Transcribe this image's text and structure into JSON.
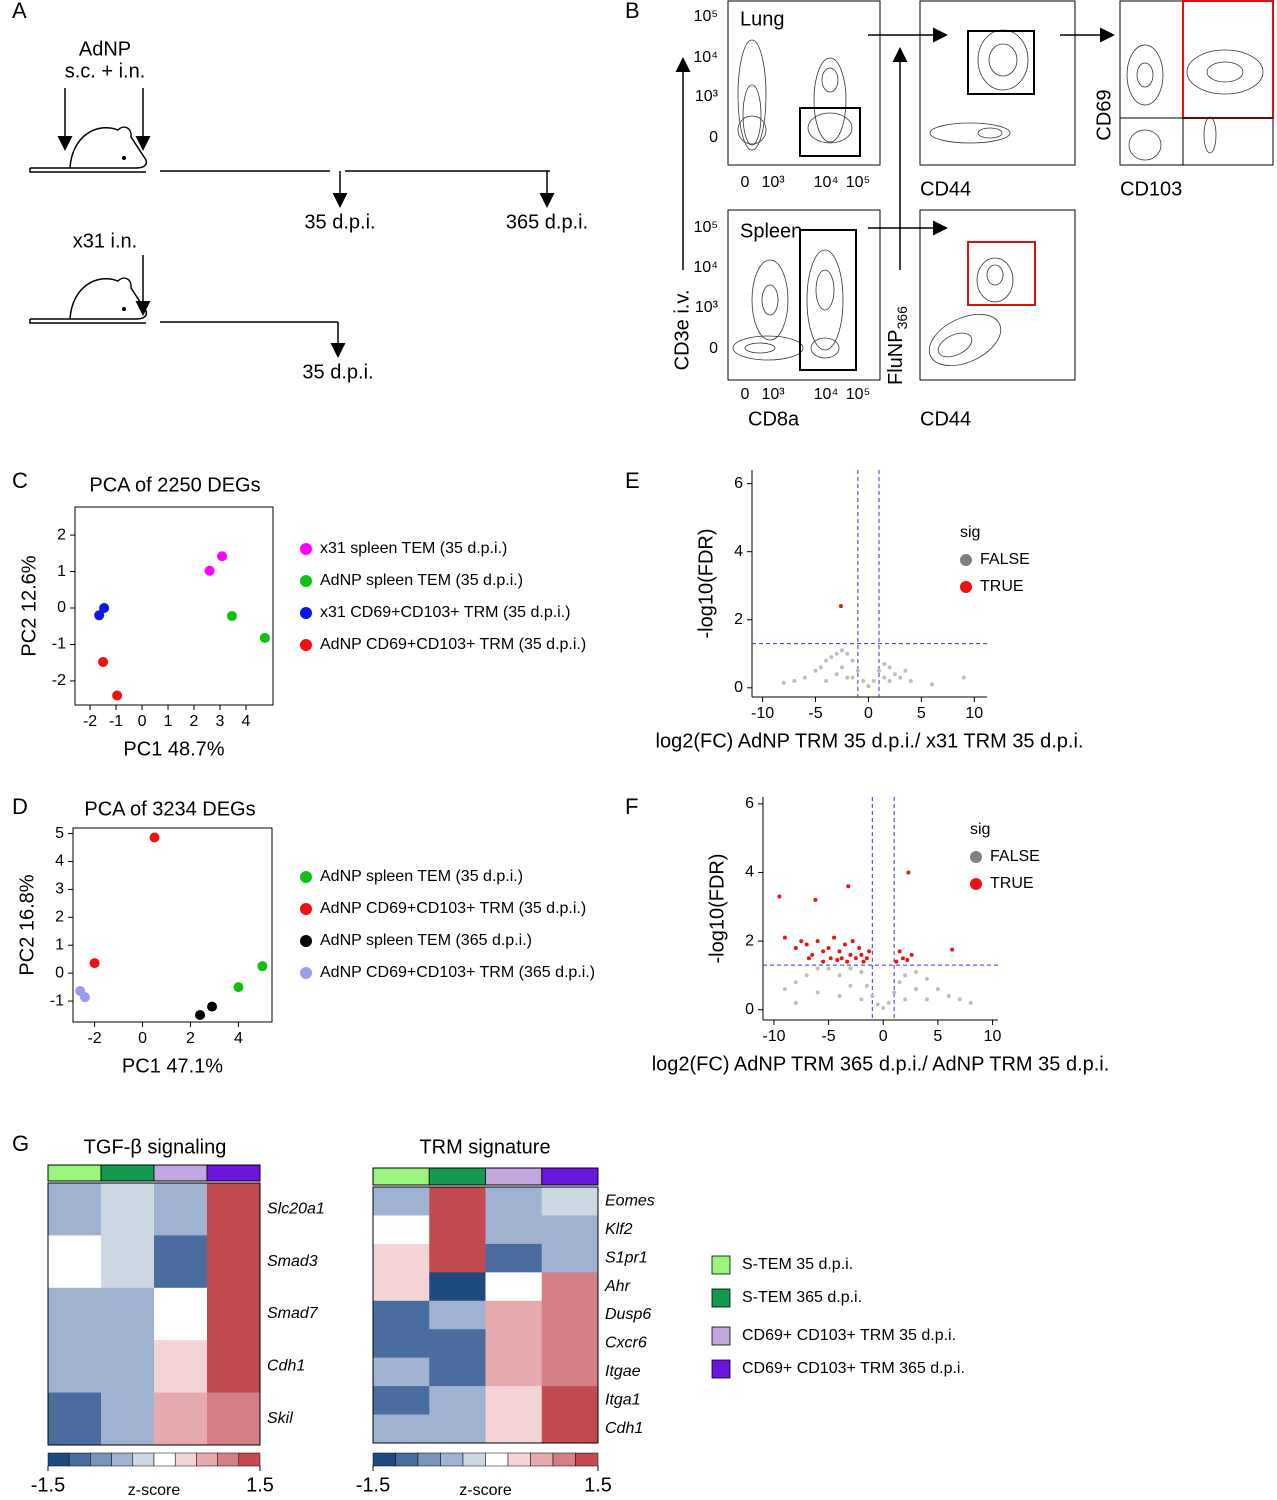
{
  "panel_labels": [
    "A",
    "B",
    "C",
    "D",
    "E",
    "F",
    "G"
  ],
  "schematic": {
    "adnp": "AdNP",
    "adnp_route": "s.c. + i.n.",
    "x31": "x31 i.n.",
    "timepoints": [
      "35 d.p.i.",
      "365 d.p.i.",
      "35 d.p.i."
    ]
  },
  "flow": {
    "lung": "Lung",
    "spleen": "Spleen",
    "cd3e": "CD3e i.v.",
    "cd8a": "CD8a",
    "cd44": "CD44",
    "cd69": "CD69",
    "cd103": "CD103",
    "flunp": "FluNP",
    "flunp_sub": "366",
    "tick_labels": [
      "0",
      "10³",
      "10⁴",
      "10⁵"
    ]
  },
  "chart_data": [
    {
      "type": "scatter",
      "frame": "box",
      "title": "PCA of 2250 DEGs",
      "xlabel": "PC1 48.7%",
      "ylabel": "PC2 12.6%",
      "xlim": [
        -2.58,
        5.04
      ],
      "ylim": [
        -2.66,
        2.77
      ],
      "xticks": [
        -2,
        -1,
        0,
        1,
        2,
        3,
        4
      ],
      "yticks": [
        -2,
        -1,
        0,
        1,
        2
      ],
      "marker_size": 5,
      "series": [
        {
          "name": "x31 spleen TEM (35 d.p.i.)",
          "color": "#ff00ff",
          "x": [
            2.6,
            3.08
          ],
          "values": [
            1.02,
            1.42
          ]
        },
        {
          "name": "AdNP spleen TEM (35 d.p.i.)",
          "color": "#10c010",
          "x": [
            3.46,
            4.73
          ],
          "values": [
            -0.22,
            -0.82
          ]
        },
        {
          "name": "x31 CD69+CD103+ TRM (35 d.p.i.)",
          "color": "#0a16e6",
          "x": [
            -1.65,
            -1.46
          ],
          "values": [
            -0.2,
            0.0
          ]
        },
        {
          "name": "AdNP CD69+CD103+ TRM (35 d.p.i.)",
          "color": "#ee1111",
          "x": [
            -1.5,
            -0.96
          ],
          "values": [
            -1.48,
            -2.4
          ]
        }
      ]
    },
    {
      "type": "scatter",
      "frame": "box",
      "title": "PCA of 3234 DEGs",
      "xlabel": "PC1 47.1%",
      "ylabel": "PC2 16.8%",
      "xlim": [
        -2.9,
        5.4
      ],
      "ylim": [
        -1.75,
        5.2
      ],
      "xticks": [
        -2,
        0,
        2,
        4
      ],
      "yticks": [
        -1,
        0,
        1,
        2,
        3,
        4,
        5
      ],
      "marker_size": 5,
      "series": [
        {
          "name": "AdNP spleen TEM (35 d.p.i.)",
          "color": "#10c010",
          "x": [
            4.0,
            5.0
          ],
          "values": [
            -0.5,
            0.25
          ]
        },
        {
          "name": "AdNP CD69+CD103+ TRM (35 d.p.i.)",
          "color": "#ee1111",
          "x": [
            0.5,
            -2.0
          ],
          "values": [
            4.86,
            0.36
          ]
        },
        {
          "name": "AdNP spleen TEM (365 d.p.i.)",
          "color": "#000000",
          "x": [
            2.4,
            2.9
          ],
          "values": [
            -1.5,
            -1.2
          ]
        },
        {
          "name": "AdNP CD69+CD103+ TRM (365 d.p.i.)",
          "color": "#9a9cf2",
          "x": [
            -2.6,
            -2.4
          ],
          "values": [
            -0.64,
            -0.86
          ]
        }
      ]
    },
    {
      "type": "scatter",
      "frame": "axes",
      "xlabel": "log2(FC) AdNP TRM 35 d.p.i./ x31 TRM 35 d.p.i.",
      "ylabel": "-log10(FDR)",
      "legend_title": "sig",
      "xlim": [
        -11,
        11.2
      ],
      "ylim": [
        -0.27,
        6.4
      ],
      "xticks": [
        -10,
        -5,
        0,
        5,
        10
      ],
      "yticks": [
        0,
        2,
        4,
        6
      ],
      "vlines": [
        -1,
        1
      ],
      "hline": 1.3,
      "marker_size": 2,
      "series": [
        {
          "name": "FALSE",
          "color": "#bdbdbd",
          "legend_color": "#7f7f7f",
          "x": [
            -6,
            -5,
            -4.5,
            -4,
            -3.5,
            -3,
            -2.5,
            -2,
            -1.5,
            -1,
            -0.5,
            0,
            0.5,
            1,
            1.5,
            2,
            2.5,
            3,
            4,
            -7,
            -3,
            -2,
            2,
            -1.5,
            1.5,
            -8,
            6,
            -4,
            3.5,
            -2.5,
            9
          ],
          "values": [
            0.3,
            0.5,
            0.6,
            0.8,
            0.9,
            1.0,
            1.1,
            1.0,
            0.8,
            0.5,
            0.2,
            0.05,
            0.2,
            0.5,
            0.7,
            0.6,
            0.4,
            0.3,
            0.2,
            0.2,
            0.4,
            0.3,
            0.2,
            0.3,
            0.3,
            0.15,
            0.1,
            0.2,
            0.5,
            0.6,
            0.3
          ]
        },
        {
          "name": "TRUE",
          "color": "#ee1111",
          "x": [
            -2.6
          ],
          "values": [
            2.4
          ]
        }
      ]
    },
    {
      "type": "scatter",
      "frame": "axes",
      "xlabel": "log2(FC) AdNP TRM 365 d.p.i./ AdNP TRM 35 d.p.i.",
      "ylabel": "-log10(FDR)",
      "legend_title": "sig",
      "xlim": [
        -11,
        10.5
      ],
      "ylim": [
        -0.3,
        6.2
      ],
      "xticks": [
        -10,
        -5,
        0,
        5,
        10
      ],
      "yticks": [
        0,
        2,
        4,
        6
      ],
      "vlines": [
        -1,
        1
      ],
      "hline": 1.3,
      "marker_size": 2,
      "series": [
        {
          "name": "FALSE",
          "color": "#bdbdbd",
          "legend_color": "#7f7f7f",
          "x": [
            -9,
            -8,
            -7,
            -6,
            -5,
            -4,
            -3,
            -2,
            -1.5,
            -1,
            -0.5,
            0,
            0.5,
            1,
            1.5,
            2,
            3,
            4,
            5,
            6,
            7,
            8,
            -6,
            -4,
            -2,
            2,
            4,
            -8,
            -3,
            3
          ],
          "values": [
            0.6,
            0.8,
            1.0,
            1.2,
            1.2,
            1.0,
            1.2,
            1.1,
            0.7,
            0.4,
            0.15,
            0.05,
            0.2,
            0.5,
            0.8,
            1.0,
            1.1,
            0.9,
            0.6,
            0.4,
            0.3,
            0.2,
            0.5,
            0.4,
            0.3,
            0.3,
            0.3,
            0.2,
            0.7,
            0.6
          ]
        },
        {
          "name": "TRUE",
          "color": "#ee1111",
          "x": [
            -9.5,
            -6.2,
            -3.2,
            2.3,
            6.3,
            -9,
            -8,
            -7,
            -6.5,
            -6,
            -5.5,
            -5,
            -4.8,
            -4.5,
            -4,
            -3.8,
            -3.5,
            -3,
            -2.8,
            -2.5,
            -2.2,
            -2,
            -1.8,
            -1.5,
            -5.5,
            -4.2,
            -3.3,
            1.5,
            1.8,
            2.2,
            2.6,
            1.2,
            -1.3,
            -6.8,
            -7.5
          ],
          "values": [
            3.3,
            3.2,
            3.6,
            4.0,
            1.75,
            2.1,
            1.8,
            1.9,
            1.6,
            2.0,
            1.7,
            1.8,
            1.5,
            2.1,
            1.7,
            1.5,
            1.9,
            1.6,
            2.0,
            1.5,
            1.8,
            1.6,
            1.4,
            1.5,
            1.4,
            1.45,
            1.4,
            1.7,
            1.5,
            1.45,
            1.6,
            1.4,
            1.7,
            1.5,
            2.0
          ]
        }
      ]
    },
    {
      "type": "heatmap",
      "title": "TGF-β signaling",
      "rows": [
        "Slc20a1",
        "Smad3",
        "Smad7",
        "Cdh1",
        "Skil"
      ],
      "values": [
        [
          -0.5,
          -0.2,
          -0.5,
          1.4
        ],
        [
          0,
          -0.2,
          -1.0,
          1.4
        ],
        [
          -0.5,
          -0.5,
          0,
          1.4
        ],
        [
          -0.5,
          -0.5,
          0.3,
          1.4
        ],
        [
          -1.0,
          -0.5,
          0.8,
          1.0
        ]
      ],
      "zlim": [
        -1.5,
        1.5
      ],
      "zticks": [
        -1.5,
        1.5
      ],
      "zlabel": "z-score",
      "colors": [
        "#1f4a80",
        "#4a6c9e",
        "#7a94ba",
        "#9fb2cf",
        "#cdd6e3",
        "#ffffff",
        "#f2d4d6",
        "#e4aaae",
        "#d47f84",
        "#c24b52"
      ]
    },
    {
      "type": "heatmap",
      "title": "TRM signature",
      "rows": [
        "Eomes",
        "Klf2",
        "S1pr1",
        "Ahr",
        "Dusp6",
        "Cxcr6",
        "Itgae",
        "Itga1",
        "Cdh1"
      ],
      "values": [
        [
          -0.5,
          1.4,
          -0.5,
          -0.2
        ],
        [
          0,
          1.4,
          -0.5,
          -0.5
        ],
        [
          0.3,
          1.4,
          -1.0,
          -0.5
        ],
        [
          0.3,
          -1.5,
          0,
          1.0
        ],
        [
          -1.0,
          -0.5,
          0.6,
          1.0
        ],
        [
          -1.0,
          -1.0,
          0.6,
          1.0
        ],
        [
          -0.5,
          -1.0,
          0.6,
          1.0
        ],
        [
          -1.0,
          -0.5,
          0.3,
          1.4
        ],
        [
          -0.5,
          -0.5,
          0.3,
          1.4
        ]
      ],
      "zlim": [
        -1.5,
        1.5
      ],
      "zticks": [
        -1.5,
        1.5
      ],
      "zlabel": "z-score",
      "colors": [
        "#1f4a80",
        "#4a6c9e",
        "#7a94ba",
        "#9fb2cf",
        "#cdd6e3",
        "#ffffff",
        "#f2d4d6",
        "#e4aaae",
        "#d47f84",
        "#c24b52"
      ]
    }
  ],
  "heatmap_legend": [
    {
      "name": "S-TEM 35 d.p.i.",
      "color": "#99f57d"
    },
    {
      "name": "S-TEM 365 d.p.i.",
      "color": "#149a4e"
    },
    {
      "name": "CD69+ CD103+ TRM 35 d.p.i.",
      "color": "#c2a6e0"
    },
    {
      "name": "CD69+ CD103+ TRM 365 d.p.i.",
      "color": "#6a16dc"
    }
  ]
}
